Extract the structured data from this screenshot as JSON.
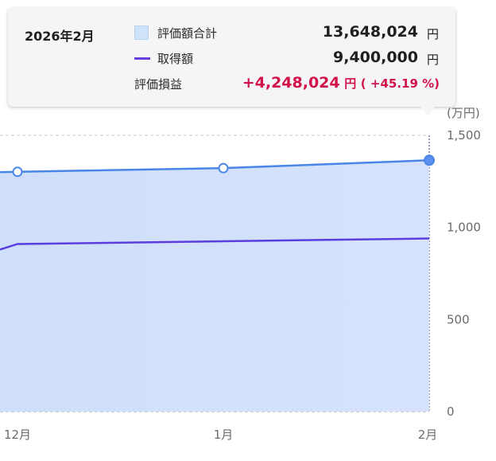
{
  "tooltip": {
    "date": "2026年2月",
    "rows": [
      {
        "label": "評価額合計",
        "value": "13,648,024",
        "unit": "円"
      },
      {
        "label": "取得額",
        "value": "9,400,000",
        "unit": "円"
      }
    ],
    "gain": {
      "label": "評価損益",
      "value": "+4,248,024",
      "unit": "円",
      "percent": "( +45.19 %)"
    }
  },
  "colors": {
    "area_fill": "#d2e2fb",
    "valuation_line": "#4a86e8",
    "cost_line": "#5b3ee0",
    "gain_text": "#d1134a",
    "grid": "#c8cdd6"
  },
  "chart_data": {
    "type": "area",
    "y_unit_label": "(万円)",
    "categories": [
      "12月",
      "1月",
      "2月"
    ],
    "ylim": [
      0,
      1500
    ],
    "y_ticks": [
      "1,500",
      "1,000",
      "500",
      "0"
    ],
    "y_tick_values": [
      1500,
      1000,
      500,
      0
    ],
    "series": [
      {
        "name": "評価額合計",
        "style": "area-line",
        "values": [
          1302,
          1322,
          1364.8
        ]
      },
      {
        "name": "取得額",
        "style": "line",
        "values": [
          910,
          925,
          940
        ]
      }
    ],
    "series_edge_values": {
      "評価額合計_left": 1300,
      "取得額_left": 880
    },
    "grid": true,
    "legend": "tooltip"
  }
}
